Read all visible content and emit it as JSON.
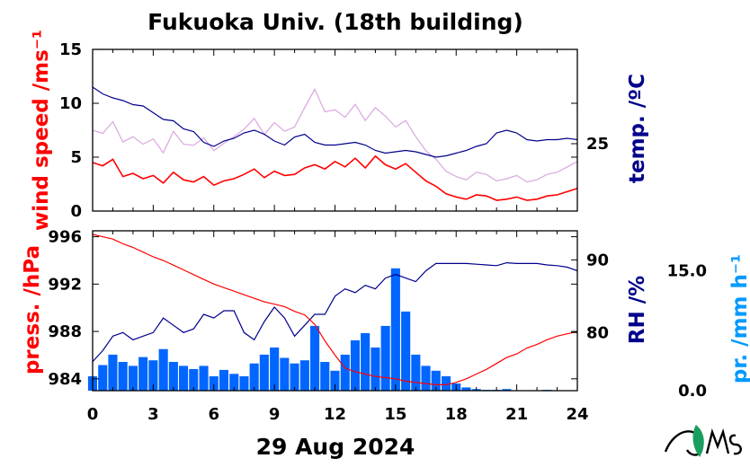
{
  "title": "Fukuoka Univ. (18th building)",
  "date_label": "29 Aug 2024",
  "colors": {
    "wind_mean": "#ff0000",
    "wind_gust": "#d9a6df",
    "temperature": "#00008b",
    "pressure": "#ff0000",
    "humidity": "#00008b",
    "precipitation": "#0066ff",
    "precip_axis": "#0099ff",
    "frame": "#000000",
    "logo": "#1a9e5f"
  },
  "chart_data": [
    {
      "type": "line",
      "panel": "top",
      "x_ticks": [
        "0",
        "3",
        "6",
        "9",
        "12",
        "15",
        "18",
        "21",
        "24"
      ],
      "xlim": [
        0,
        24
      ],
      "left_axis": {
        "label": "wind speed /ms⁻¹",
        "ylim": [
          0,
          15
        ],
        "ticks": [
          "0",
          "5",
          "10",
          "15"
        ]
      },
      "right_axis": {
        "label": "temp. /ºC",
        "ticks": [
          "25"
        ],
        "ylim": [
          20,
          32
        ]
      },
      "series": [
        {
          "key": "wind_mean",
          "x": [
            0,
            0.5,
            1,
            1.5,
            2,
            2.5,
            3,
            3.5,
            4,
            4.5,
            5,
            5.5,
            6,
            6.5,
            7,
            7.5,
            8,
            8.5,
            9,
            9.5,
            10,
            10.5,
            11,
            11.5,
            12,
            12.5,
            13,
            13.5,
            14,
            14.5,
            15,
            15.5,
            16,
            16.5,
            17,
            17.5,
            18,
            18.5,
            19,
            19.5,
            20,
            20.5,
            21,
            21.5,
            22,
            22.5,
            23,
            23.5,
            24
          ],
          "y": [
            4.5,
            4.2,
            4.8,
            3.2,
            3.5,
            3.0,
            3.3,
            2.6,
            3.6,
            2.9,
            2.7,
            3.2,
            2.4,
            2.8,
            3.0,
            3.4,
            3.9,
            3.1,
            3.7,
            3.3,
            3.4,
            4.0,
            4.3,
            3.9,
            4.6,
            4.1,
            4.9,
            4.0,
            5.1,
            4.3,
            3.9,
            4.4,
            3.6,
            2.8,
            2.3,
            1.6,
            1.3,
            1.1,
            1.5,
            1.4,
            1.0,
            1.1,
            1.3,
            1.0,
            1.1,
            1.4,
            1.5,
            1.8,
            2.1
          ]
        },
        {
          "key": "wind_gust",
          "x": [
            0,
            0.5,
            1,
            1.5,
            2,
            2.5,
            3,
            3.5,
            4,
            4.5,
            5,
            5.5,
            6,
            6.5,
            7,
            7.5,
            8,
            8.5,
            9,
            9.5,
            10,
            10.5,
            11,
            11.5,
            12,
            12.5,
            13,
            13.5,
            14,
            14.5,
            15,
            15.5,
            16,
            16.5,
            17,
            17.5,
            18,
            18.5,
            19,
            19.5,
            20,
            20.5,
            21,
            21.5,
            22,
            22.5,
            23,
            23.5,
            24
          ],
          "y": [
            7.5,
            7.2,
            8.3,
            6.4,
            6.9,
            6.2,
            6.7,
            5.4,
            7.4,
            6.2,
            6.1,
            6.8,
            5.6,
            6.3,
            6.9,
            7.6,
            8.6,
            7.1,
            8.2,
            7.4,
            7.8,
            9.6,
            11.3,
            9.2,
            9.4,
            8.7,
            9.9,
            8.4,
            9.6,
            8.8,
            7.8,
            8.4,
            6.9,
            5.6,
            4.8,
            3.7,
            3.2,
            2.9,
            3.6,
            3.4,
            2.8,
            3.0,
            3.3,
            2.7,
            2.9,
            3.4,
            3.6,
            4.1,
            4.6
          ]
        },
        {
          "key": "temperature",
          "x": [
            0,
            0.5,
            1,
            1.5,
            2,
            2.5,
            3,
            3.5,
            4,
            4.5,
            5,
            5.5,
            6,
            6.5,
            7,
            7.5,
            8,
            8.5,
            9,
            9.5,
            10,
            10.5,
            11,
            11.5,
            12,
            12.5,
            13,
            13.5,
            14,
            14.5,
            15,
            15.5,
            16,
            16.5,
            17,
            17.5,
            18,
            18.5,
            19,
            19.5,
            20,
            20.5,
            21,
            21.5,
            22,
            22.5,
            23,
            23.5,
            24
          ],
          "y": [
            29.2,
            28.7,
            28.4,
            28.2,
            27.9,
            27.8,
            27.3,
            26.8,
            26.7,
            26.1,
            25.9,
            25.1,
            24.8,
            25.2,
            25.4,
            25.8,
            26.0,
            25.7,
            25.2,
            24.9,
            25.5,
            25.7,
            25.1,
            24.9,
            24.9,
            25.0,
            25.1,
            24.9,
            24.5,
            24.3,
            24.4,
            24.5,
            24.4,
            24.2,
            24.0,
            24.1,
            24.3,
            24.5,
            24.8,
            25.0,
            25.8,
            26.0,
            25.8,
            25.3,
            25.2,
            25.3,
            25.3,
            25.4,
            25.3
          ]
        }
      ]
    },
    {
      "type": "line",
      "panel": "bottom",
      "x_ticks": [
        "0",
        "3",
        "6",
        "9",
        "12",
        "15",
        "18",
        "21",
        "24"
      ],
      "xlim": [
        0,
        24
      ],
      "xlabel": "29 Aug 2024",
      "left_axis": {
        "label": "press. /hPa",
        "ylim": [
          983,
          996.5
        ],
        "ticks": [
          "984",
          "988",
          "992",
          "996"
        ]
      },
      "right_axis": {
        "label": "RH /%",
        "ylim": [
          72,
          94
        ],
        "ticks": [
          "80",
          "90"
        ]
      },
      "precip_axis": {
        "label": "pr. /mm h⁻¹",
        "ylim": [
          0,
          20
        ],
        "ticks": [
          "0.0",
          "15.0"
        ]
      },
      "series": [
        {
          "key": "pressure",
          "x": [
            0,
            0.5,
            1,
            1.5,
            2,
            2.5,
            3,
            3.5,
            4,
            4.5,
            5,
            5.5,
            6,
            6.5,
            7,
            7.5,
            8,
            8.5,
            9,
            9.5,
            10,
            10.5,
            11,
            11.5,
            12,
            12.5,
            13,
            13.5,
            14,
            14.5,
            15,
            15.5,
            16,
            16.5,
            17,
            17.5,
            18,
            18.5,
            19,
            19.5,
            20,
            20.5,
            21,
            21.5,
            22,
            22.5,
            23,
            23.5,
            24
          ],
          "y": [
            996.2,
            996.0,
            995.8,
            995.4,
            995.1,
            994.7,
            994.3,
            994.0,
            993.6,
            993.2,
            992.8,
            992.4,
            992.0,
            991.7,
            991.4,
            991.1,
            990.8,
            990.5,
            990.3,
            990.1,
            989.7,
            989.4,
            988.6,
            987.2,
            986.0,
            984.9,
            984.6,
            984.4,
            984.2,
            984.1,
            984.0,
            983.8,
            983.7,
            983.6,
            983.5,
            983.5,
            983.7,
            984.0,
            984.4,
            984.8,
            985.3,
            985.8,
            986.1,
            986.6,
            986.9,
            987.3,
            987.6,
            987.8,
            988.0
          ]
        },
        {
          "key": "humidity",
          "x": [
            0,
            0.5,
            1,
            1.5,
            2,
            2.5,
            3,
            3.5,
            4,
            4.5,
            5,
            5.5,
            6,
            6.5,
            7,
            7.5,
            8,
            8.5,
            9,
            9.5,
            10,
            10.5,
            11,
            11.5,
            12,
            12.5,
            13,
            13.5,
            14,
            14.5,
            15,
            15.5,
            16,
            16.5,
            17,
            17.5,
            18,
            18.5,
            19,
            19.5,
            20,
            20.5,
            21,
            21.5,
            22,
            22.5,
            23,
            23.5,
            24
          ],
          "y": [
            76.0,
            77.5,
            79.5,
            80.0,
            79.0,
            79.5,
            80.0,
            82.0,
            81.0,
            80.0,
            80.5,
            82.5,
            82.0,
            83.0,
            83.0,
            80.0,
            79.0,
            81.5,
            83.5,
            82.0,
            79.5,
            81.0,
            82.5,
            82.5,
            85.0,
            86.0,
            85.5,
            86.5,
            86.0,
            87.5,
            88.0,
            87.5,
            87.0,
            88.5,
            89.5,
            89.5,
            89.5,
            89.5,
            89.4,
            89.3,
            89.2,
            89.6,
            89.5,
            89.5,
            89.5,
            89.3,
            89.2,
            89.0,
            88.5
          ]
        },
        {
          "key": "precipitation",
          "x": [
            0,
            0.5,
            1,
            1.5,
            2,
            2.5,
            3,
            3.5,
            4,
            4.5,
            5,
            5.5,
            6,
            6.5,
            7,
            7.5,
            8,
            8.5,
            9,
            9.5,
            10,
            10.5,
            11,
            11.5,
            12,
            12.5,
            13,
            13.5,
            14,
            14.5,
            15,
            15.5,
            16,
            16.5,
            17,
            17.5,
            18,
            18.5,
            19,
            19.5,
            20,
            20.5,
            21,
            21.5,
            22,
            22.5,
            23,
            23.5,
            24
          ],
          "y": [
            1.8,
            3.2,
            4.5,
            3.6,
            3.1,
            4.2,
            3.8,
            5.2,
            3.6,
            3.1,
            2.7,
            3.1,
            1.8,
            2.6,
            2.1,
            1.8,
            3.4,
            4.5,
            5.4,
            4.1,
            3.4,
            3.8,
            8.1,
            3.6,
            2.5,
            4.5,
            6.3,
            7.2,
            5.4,
            8.1,
            15.3,
            9.9,
            4.5,
            3.1,
            2.5,
            1.8,
            0.9,
            0.4,
            0.2,
            0.1,
            0.1,
            0.2,
            0,
            0,
            0,
            0.1,
            0,
            0,
            0
          ]
        }
      ]
    }
  ]
}
